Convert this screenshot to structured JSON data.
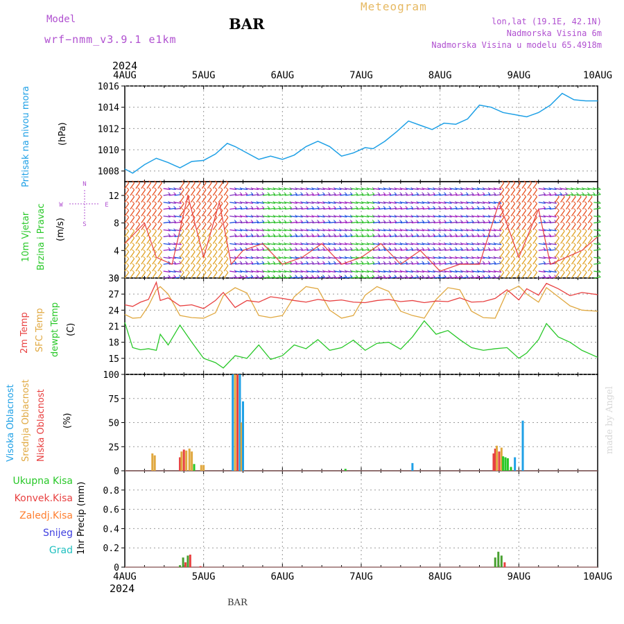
{
  "header": {
    "model_label": "Model",
    "model_name": "wrf−nmm_v3.9.1 e1km",
    "station": "BAR",
    "meteogram": "Meteogram",
    "coords": "lon,lat (19.1E, 42.1N)",
    "altitude": "Nadmorska Visina 6m",
    "model_altitude": "Nadmorska Visina u modelu 65.4918m",
    "year_top": "2024",
    "year_bottom": "2024",
    "credit": "made by Angel",
    "footer_station": "BAR"
  },
  "days": [
    "4AUG",
    "5AUG",
    "6AUG",
    "7AUG",
    "8AUG",
    "9AUG",
    "10AUG"
  ],
  "panel_labels": {
    "pressure": {
      "name": "Pritisak na nivou mora",
      "unit": "(hPa)",
      "color": "#1ea0e6"
    },
    "wind": {
      "name1": "10m Vjetar",
      "name2": "Brzina i Pravac",
      "unit": "(m/s)",
      "color": "#28c828",
      "compass": [
        "N",
        "S",
        "E",
        "W"
      ]
    },
    "temp": {
      "t2m": "2m Temp",
      "sfc": "SFC Temp",
      "dew": "dewpt Temp",
      "unit": "(C)"
    },
    "cloud": {
      "high": "Visoka Oblacnost",
      "mid": "Srednja Oblacnost",
      "low": "Niska Oblacnost",
      "unit": "(%)"
    },
    "precip": {
      "unit": "1hr Precip (mm)",
      "legend": [
        "Ukupna Kisa",
        "Konvek.Kisa",
        "Zaledj.Kisa",
        "Snijeg",
        "Grad"
      ]
    }
  },
  "colors": {
    "pressure": "#1ea0e6",
    "t2m": "#e84040",
    "sfc": "#e0a840",
    "dew": "#28c828",
    "cloud_high": "#1ea0e6",
    "cloud_mid": "#e0a840",
    "cloud_low": "#e84040",
    "rain_total": "#28c828",
    "rain_conv": "#e84040",
    "rain_frz": "#ff7f30",
    "snow": "#4040e0",
    "hail": "#20c0c0",
    "wind_fast": "#e85020",
    "wind_slow": "#8030c0",
    "gust": "#e84040"
  },
  "chart_data": [
    {
      "type": "line",
      "name": "pressure",
      "x_days": [
        0,
        0.1,
        0.25,
        0.4,
        0.55,
        0.7,
        0.85,
        1,
        1.15,
        1.3,
        1.4,
        1.55,
        1.7,
        1.85,
        2,
        2.15,
        2.3,
        2.45,
        2.6,
        2.75,
        2.9,
        3.05,
        3.15,
        3.3,
        3.45,
        3.6,
        3.75,
        3.9,
        4.05,
        4.2,
        4.35,
        4.5,
        4.65,
        4.8,
        4.95,
        5.1,
        5.25,
        5.4,
        5.55,
        5.7,
        5.85,
        6
      ],
      "values": [
        1008.2,
        1007.8,
        1008.6,
        1009.2,
        1008.8,
        1008.3,
        1008.9,
        1009.0,
        1009.6,
        1010.6,
        1010.3,
        1009.7,
        1009.1,
        1009.4,
        1009.1,
        1009.5,
        1010.3,
        1010.8,
        1010.3,
        1009.4,
        1009.7,
        1010.2,
        1010.1,
        1010.8,
        1011.7,
        1012.7,
        1012.3,
        1011.9,
        1012.5,
        1012.4,
        1012.9,
        1014.2,
        1014.0,
        1013.5,
        1013.3,
        1013.1,
        1013.5,
        1014.2,
        1015.3,
        1014.7,
        1014.6,
        1014.6
      ],
      "ylim": [
        1007,
        1016
      ],
      "yticks": [
        1008,
        1010,
        1012,
        1014,
        1016
      ]
    },
    {
      "type": "line",
      "name": "wind",
      "x_days": [
        0,
        0.25,
        0.4,
        0.6,
        0.8,
        1.0,
        1.2,
        1.35,
        1.5,
        1.75,
        2.0,
        2.25,
        2.5,
        2.75,
        3.0,
        3.25,
        3.5,
        3.75,
        4.0,
        4.25,
        4.5,
        4.75,
        5.0,
        5.25,
        5.4,
        5.6,
        5.8,
        6
      ],
      "gust": [
        5,
        8,
        3,
        2,
        12,
        3,
        11,
        2,
        4,
        5,
        2,
        3,
        5,
        2,
        3,
        5,
        2,
        4,
        1,
        2,
        2,
        11,
        3,
        10,
        2,
        3,
        4,
        6
      ],
      "ylim": [
        0,
        14
      ],
      "yticks": [
        0,
        4,
        8,
        12
      ],
      "barb_rows": [
        0,
        1,
        2,
        3,
        4,
        5,
        6,
        7,
        8,
        9,
        10,
        11,
        12,
        13
      ]
    },
    {
      "type": "line",
      "name": "temperature",
      "x_days": [
        0,
        0.1,
        0.2,
        0.3,
        0.4,
        0.45,
        0.55,
        0.7,
        0.85,
        1.0,
        1.15,
        1.25,
        1.4,
        1.55,
        1.7,
        1.85,
        2.0,
        2.15,
        2.3,
        2.45,
        2.6,
        2.75,
        2.9,
        3.05,
        3.2,
        3.35,
        3.5,
        3.65,
        3.8,
        3.95,
        4.1,
        4.25,
        4.4,
        4.55,
        4.7,
        4.85,
        5.0,
        5.1,
        5.25,
        5.35,
        5.5,
        5.65,
        5.8,
        6
      ],
      "t2m": [
        25.0,
        24.7,
        25.5,
        26.0,
        29.2,
        25.8,
        26.3,
        24.8,
        25.0,
        24.3,
        25.8,
        27.3,
        24.5,
        25.8,
        25.5,
        26.5,
        26.2,
        25.8,
        25.5,
        26.0,
        25.7,
        25.9,
        25.5,
        25.4,
        25.8,
        26.0,
        25.6,
        25.8,
        25.4,
        25.7,
        25.6,
        26.3,
        25.5,
        25.6,
        26.2,
        27.8,
        25.9,
        28.0,
        26.8,
        29.0,
        28.0,
        26.7,
        27.3,
        26.9
      ],
      "sfc": [
        23.2,
        22.5,
        22.6,
        24.8,
        27.8,
        28.4,
        27.0,
        23.0,
        22.6,
        22.5,
        23.5,
        26.7,
        28.2,
        27.2,
        23.0,
        22.6,
        23.0,
        26.5,
        28.4,
        28.0,
        24.0,
        22.5,
        23.0,
        26.8,
        28.4,
        27.5,
        23.8,
        23.0,
        22.5,
        26.0,
        28.2,
        27.8,
        23.8,
        22.6,
        22.5,
        27.4,
        28.5,
        27.0,
        25.5,
        28.2,
        26.5,
        24.8,
        24.0,
        23.8
      ],
      "dew": [
        21.7,
        17.0,
        16.6,
        16.8,
        16.5,
        19.5,
        17.5,
        21.2,
        18.0,
        15.0,
        14.2,
        13.2,
        15.5,
        15.0,
        17.5,
        14.8,
        15.5,
        17.5,
        16.8,
        18.5,
        16.5,
        17.0,
        18.4,
        16.5,
        17.8,
        18.0,
        16.7,
        19.0,
        22.0,
        19.5,
        20.2,
        18.5,
        17.0,
        16.5,
        16.8,
        17.0,
        15.0,
        16.0,
        18.5,
        21.5,
        19.0,
        18.0,
        16.5,
        15.2
      ],
      "ylim": [
        12,
        30
      ],
      "yticks": [
        15,
        18,
        21,
        24,
        27,
        30
      ]
    },
    {
      "type": "bar",
      "name": "cloud",
      "bars": [
        {
          "x": 0.35,
          "series": "mid",
          "v": 18
        },
        {
          "x": 0.38,
          "series": "mid",
          "v": 16
        },
        {
          "x": 0.7,
          "series": "low",
          "v": 14
        },
        {
          "x": 0.72,
          "series": "mid",
          "v": 20
        },
        {
          "x": 0.75,
          "series": "low",
          "v": 22
        },
        {
          "x": 0.78,
          "series": "mid",
          "v": 21
        },
        {
          "x": 0.82,
          "series": "mid",
          "v": 23
        },
        {
          "x": 0.85,
          "series": "mid",
          "v": 20
        },
        {
          "x": 0.88,
          "series": "rain",
          "v": 7
        },
        {
          "x": 0.97,
          "series": "mid",
          "v": 6
        },
        {
          "x": 1.0,
          "series": "mid",
          "v": 6
        },
        {
          "x": 1.37,
          "series": "high",
          "v": 100
        },
        {
          "x": 1.4,
          "series": "mid",
          "v": 100
        },
        {
          "x": 1.43,
          "series": "low",
          "v": 100
        },
        {
          "x": 1.46,
          "series": "high",
          "v": 100
        },
        {
          "x": 1.48,
          "series": "mid",
          "v": 50
        },
        {
          "x": 1.5,
          "series": "high",
          "v": 72
        },
        {
          "x": 2.8,
          "series": "rain",
          "v": 2
        },
        {
          "x": 3.65,
          "series": "high",
          "v": 8
        },
        {
          "x": 4.68,
          "series": "low",
          "v": 18
        },
        {
          "x": 4.7,
          "series": "low",
          "v": 23
        },
        {
          "x": 4.72,
          "series": "mid",
          "v": 26
        },
        {
          "x": 4.75,
          "series": "low",
          "v": 20
        },
        {
          "x": 4.78,
          "series": "mid",
          "v": 24
        },
        {
          "x": 4.8,
          "series": "rain",
          "v": 15
        },
        {
          "x": 4.83,
          "series": "rain",
          "v": 14
        },
        {
          "x": 4.86,
          "series": "rain",
          "v": 13
        },
        {
          "x": 4.9,
          "series": "rain",
          "v": 4
        },
        {
          "x": 4.95,
          "series": "high",
          "v": 14
        },
        {
          "x": 5.05,
          "series": "high",
          "v": 52
        }
      ],
      "ylim": [
        0,
        100
      ],
      "yticks": [
        0,
        25,
        50,
        75,
        100
      ]
    },
    {
      "type": "bar",
      "name": "precip",
      "bars": [
        {
          "x": 0.7,
          "series": "rain",
          "v": 0.02
        },
        {
          "x": 0.74,
          "series": "rain",
          "v": 0.1
        },
        {
          "x": 0.77,
          "series": "conv",
          "v": 0.05
        },
        {
          "x": 0.8,
          "series": "rain",
          "v": 0.12
        },
        {
          "x": 0.83,
          "series": "conv",
          "v": 0.13
        },
        {
          "x": 0.96,
          "series": "conv",
          "v": 0.01
        },
        {
          "x": 4.7,
          "series": "rain",
          "v": 0.1
        },
        {
          "x": 4.74,
          "series": "rain",
          "v": 0.16
        },
        {
          "x": 4.78,
          "series": "rain",
          "v": 0.12
        },
        {
          "x": 4.82,
          "series": "conv",
          "v": 0.05
        }
      ],
      "ylim": [
        0,
        1
      ],
      "yticks": [
        0,
        0.2,
        0.4,
        0.6,
        0.8
      ]
    }
  ]
}
